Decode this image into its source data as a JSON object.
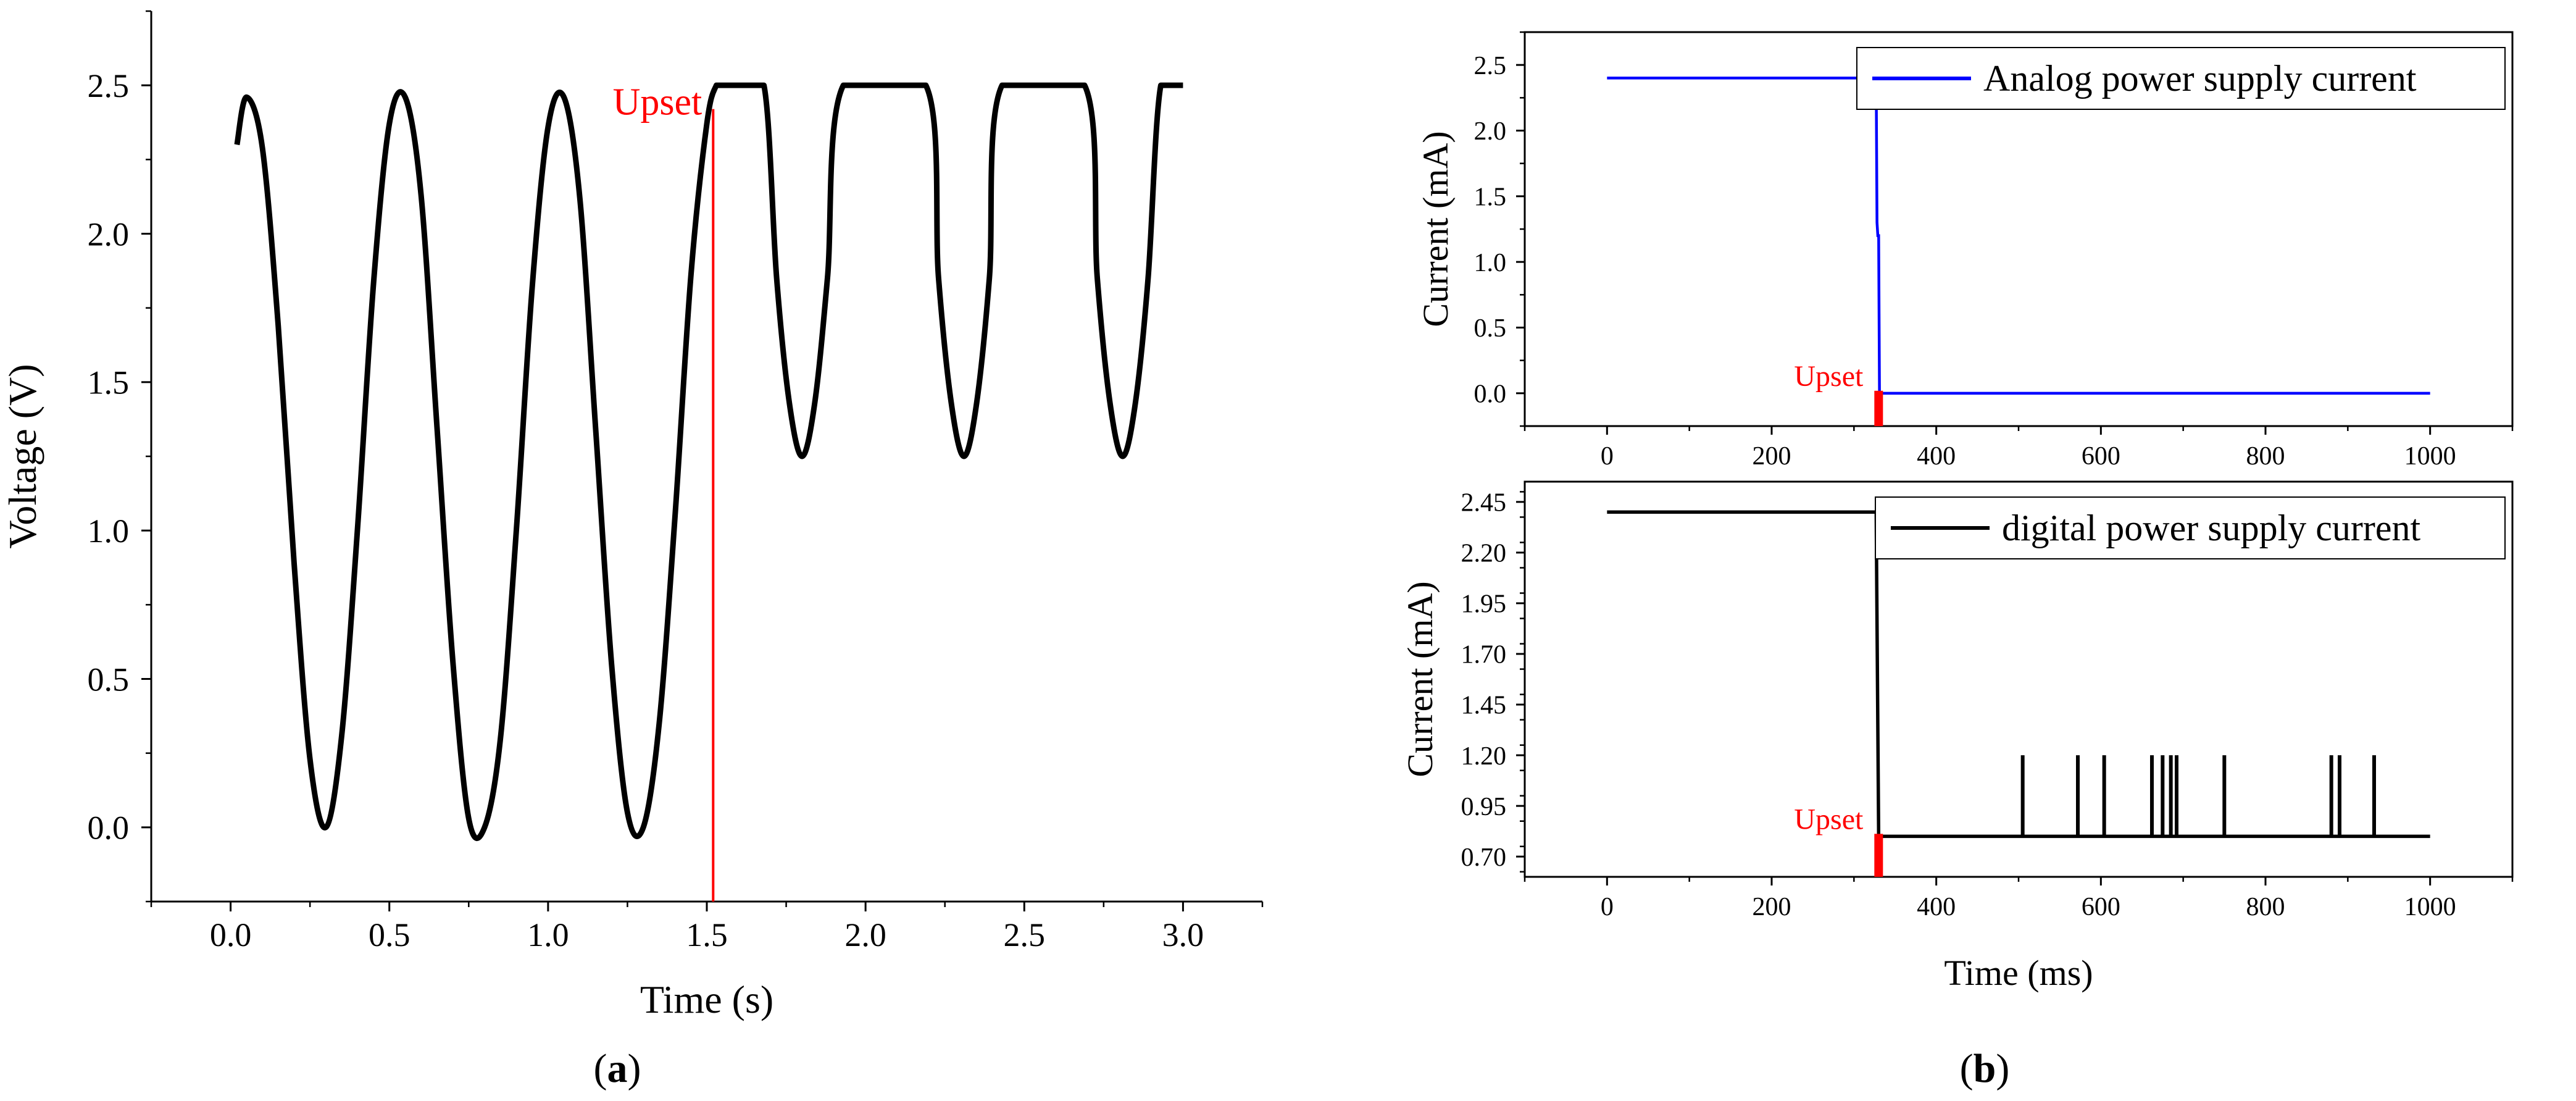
{
  "chart_data": [
    {
      "panel_label": "a",
      "type": "line",
      "xlabel": "Time (s)",
      "ylabel": "Voltage (V)",
      "xlim": [
        -0.25,
        3.25
      ],
      "ylim": [
        -0.25,
        2.75
      ],
      "xticks": [
        0.0,
        0.5,
        1.0,
        1.5,
        2.0,
        2.5,
        3.0
      ],
      "xtick_labels": [
        "0.0",
        "0.5",
        "1.0",
        "1.5",
        "2.0",
        "2.5",
        "3.0"
      ],
      "yticks": [
        0.0,
        0.5,
        1.0,
        1.5,
        2.0,
        2.5
      ],
      "ytick_labels": [
        "0.0",
        "0.5",
        "1.0",
        "1.5",
        "2.0",
        "2.5"
      ],
      "grid": false,
      "series": [
        {
          "color": "#000000",
          "x": [
            0.02,
            0.05,
            0.1,
            0.15,
            0.2,
            0.25,
            0.3,
            0.35,
            0.4,
            0.45,
            0.5,
            0.55,
            0.6,
            0.65,
            0.7,
            0.75,
            0.8,
            0.85,
            0.9,
            0.95,
            1.0,
            1.05,
            1.1,
            1.15,
            1.2,
            1.25,
            1.3,
            1.35,
            1.4,
            1.45,
            1.5,
            1.53,
            1.55,
            1.6,
            1.68,
            1.72,
            1.76,
            1.8,
            1.84,
            1.88,
            1.93,
            2.19,
            2.23,
            2.27,
            2.31,
            2.35,
            2.39,
            2.43,
            2.69,
            2.73,
            2.77,
            2.81,
            2.85,
            2.89,
            2.93,
            3.0
          ],
          "y": [
            2.3,
            2.46,
            2.29,
            1.69,
            0.89,
            0.23,
            0.0,
            0.31,
            1.01,
            1.83,
            2.37,
            2.46,
            2.13,
            1.35,
            0.56,
            0.03,
            0.0,
            0.3,
            1.0,
            1.82,
            2.36,
            2.46,
            2.12,
            1.34,
            0.55,
            0.05,
            0.0,
            0.35,
            1.05,
            1.86,
            2.37,
            2.5,
            2.5,
            2.5,
            2.5,
            1.85,
            1.43,
            1.25,
            1.43,
            1.85,
            2.5,
            2.5,
            1.85,
            1.43,
            1.25,
            1.43,
            1.85,
            2.5,
            2.5,
            1.85,
            1.43,
            1.25,
            1.43,
            1.85,
            2.5,
            2.5
          ]
        }
      ],
      "markers": [
        {
          "label": "Upset",
          "x": 1.52,
          "color": "#ff0000"
        }
      ],
      "caption_letter": "a",
      "caption_open": "(",
      "caption_close": ")"
    },
    {
      "panel_label": "b-top",
      "type": "line",
      "xlabel": "",
      "ylabel": "Current (mA)",
      "xlim": [
        -100,
        1100
      ],
      "ylim": [
        -0.25,
        2.75
      ],
      "xticks": [
        0,
        200,
        400,
        600,
        800,
        1000
      ],
      "xtick_labels": [
        "0",
        "200",
        "400",
        "600",
        "800",
        "1000"
      ],
      "yticks": [
        0.0,
        0.5,
        1.0,
        1.5,
        2.0,
        2.5
      ],
      "ytick_labels": [
        "0.0",
        "0.5",
        "1.0",
        "1.5",
        "2.0",
        "2.5"
      ],
      "grid": false,
      "legend_position": "top-right",
      "series": [
        {
          "name": "Analog power supply current",
          "color": "#0000ff",
          "x": [
            0,
            327,
            328,
            329,
            330,
            331,
            332,
            1000
          ],
          "y": [
            2.4,
            2.4,
            1.3,
            1.2,
            1.2,
            0.0,
            0.0,
            0.0
          ]
        }
      ],
      "markers": [
        {
          "label": "Upset",
          "x": 330,
          "color": "#ff0000"
        }
      ]
    },
    {
      "panel_label": "b-bottom",
      "type": "line",
      "xlabel": "Time (ms)",
      "ylabel": "Current (mA)",
      "xlim": [
        -100,
        1100
      ],
      "ylim": [
        0.6,
        2.55
      ],
      "xticks": [
        0,
        200,
        400,
        600,
        800,
        1000
      ],
      "xtick_labels": [
        "0",
        "200",
        "400",
        "600",
        "800",
        "1000"
      ],
      "yticks": [
        0.7,
        0.95,
        1.2,
        1.45,
        1.7,
        1.95,
        2.2,
        2.45
      ],
      "ytick_labels": [
        "0.70",
        "0.95",
        "1.20",
        "1.45",
        "1.70",
        "1.95",
        "2.20",
        "2.45"
      ],
      "grid": false,
      "legend_position": "top-right",
      "series": [
        {
          "name": "digital power supply current",
          "color": "#000000",
          "x": [
            0,
            327,
            330,
            1000
          ],
          "y": [
            2.4,
            2.4,
            0.8,
            0.8
          ],
          "spikes": {
            "x": [
              505,
              572,
              604,
              662,
              675,
              685,
              692,
              750,
              880,
              890,
              932
            ],
            "base": 0.8,
            "peak": 1.2
          }
        }
      ],
      "markers": [
        {
          "label": "Upset",
          "x": 330,
          "color": "#ff0000"
        }
      ],
      "caption_letter": "b",
      "caption_open": "(",
      "caption_close": ")"
    }
  ]
}
